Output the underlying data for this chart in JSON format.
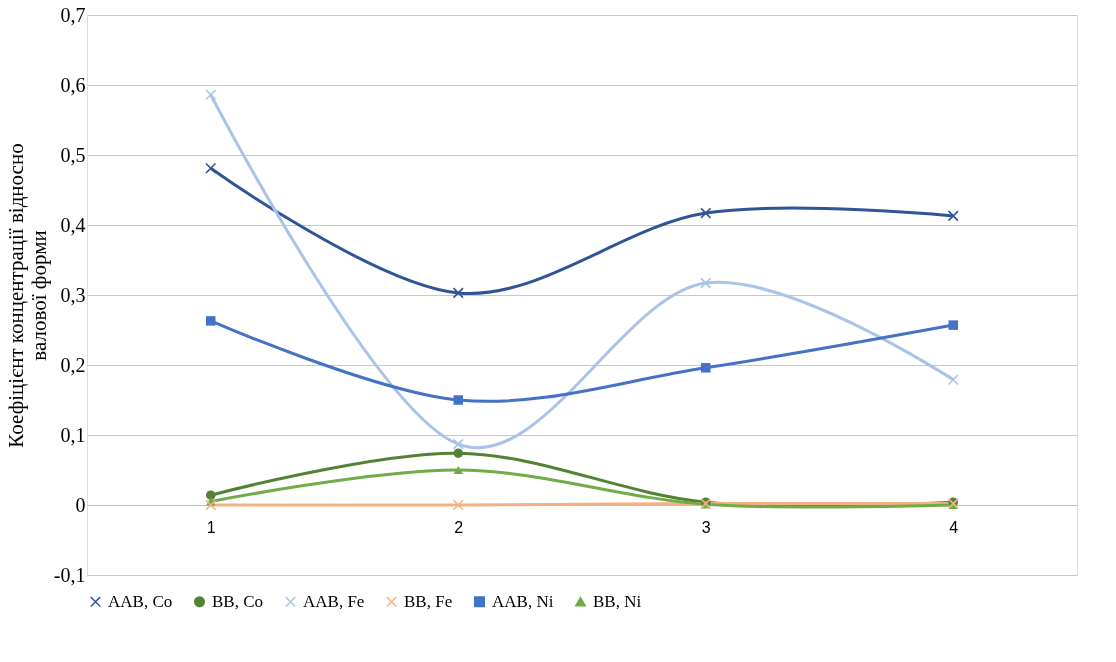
{
  "chart_data": {
    "type": "line",
    "ylabel": "Коефіцієнт концентрації відносно\nвалової форми",
    "categories": [
      "1",
      "2",
      "3",
      "4"
    ],
    "series": [
      {
        "name": "AAB, Co",
        "color": "#2f5597",
        "marker": "cross",
        "values": [
          0.481,
          0.303,
          0.417,
          0.413
        ]
      },
      {
        "name": "BB, Co",
        "color": "#548235",
        "marker": "circle",
        "values": [
          0.014,
          0.074,
          0.004,
          0.004
        ]
      },
      {
        "name": "AAB, Fe",
        "color": "#a9c4e6",
        "marker": "cross",
        "values": [
          0.586,
          0.087,
          0.317,
          0.179
        ]
      },
      {
        "name": "BB, Fe",
        "color": "#f4b183",
        "marker": "cross",
        "values": [
          0.0,
          0.0,
          0.002,
          0.002
        ]
      },
      {
        "name": "AAB, Ni",
        "color": "#4472c4",
        "marker": "square",
        "values": [
          0.263,
          0.15,
          0.196,
          0.257
        ]
      },
      {
        "name": "BB, Ni",
        "color": "#70ad47",
        "marker": "triangle",
        "values": [
          0.005,
          0.05,
          0.001,
          0.0
        ]
      }
    ],
    "ylim": [
      -0.1,
      0.7
    ],
    "yticks": [
      {
        "value": -0.1,
        "label": "-0,1"
      },
      {
        "value": 0,
        "label": "0"
      },
      {
        "value": 0.1,
        "label": "0,1"
      },
      {
        "value": 0.2,
        "label": "0,2"
      },
      {
        "value": 0.3,
        "label": "0,3"
      },
      {
        "value": 0.4,
        "label": "0,4"
      },
      {
        "value": 0.5,
        "label": "0,5"
      },
      {
        "value": 0.6,
        "label": "0,6"
      },
      {
        "value": 0.7,
        "label": "0,7"
      }
    ],
    "grid": "y",
    "legend": "bottom"
  }
}
